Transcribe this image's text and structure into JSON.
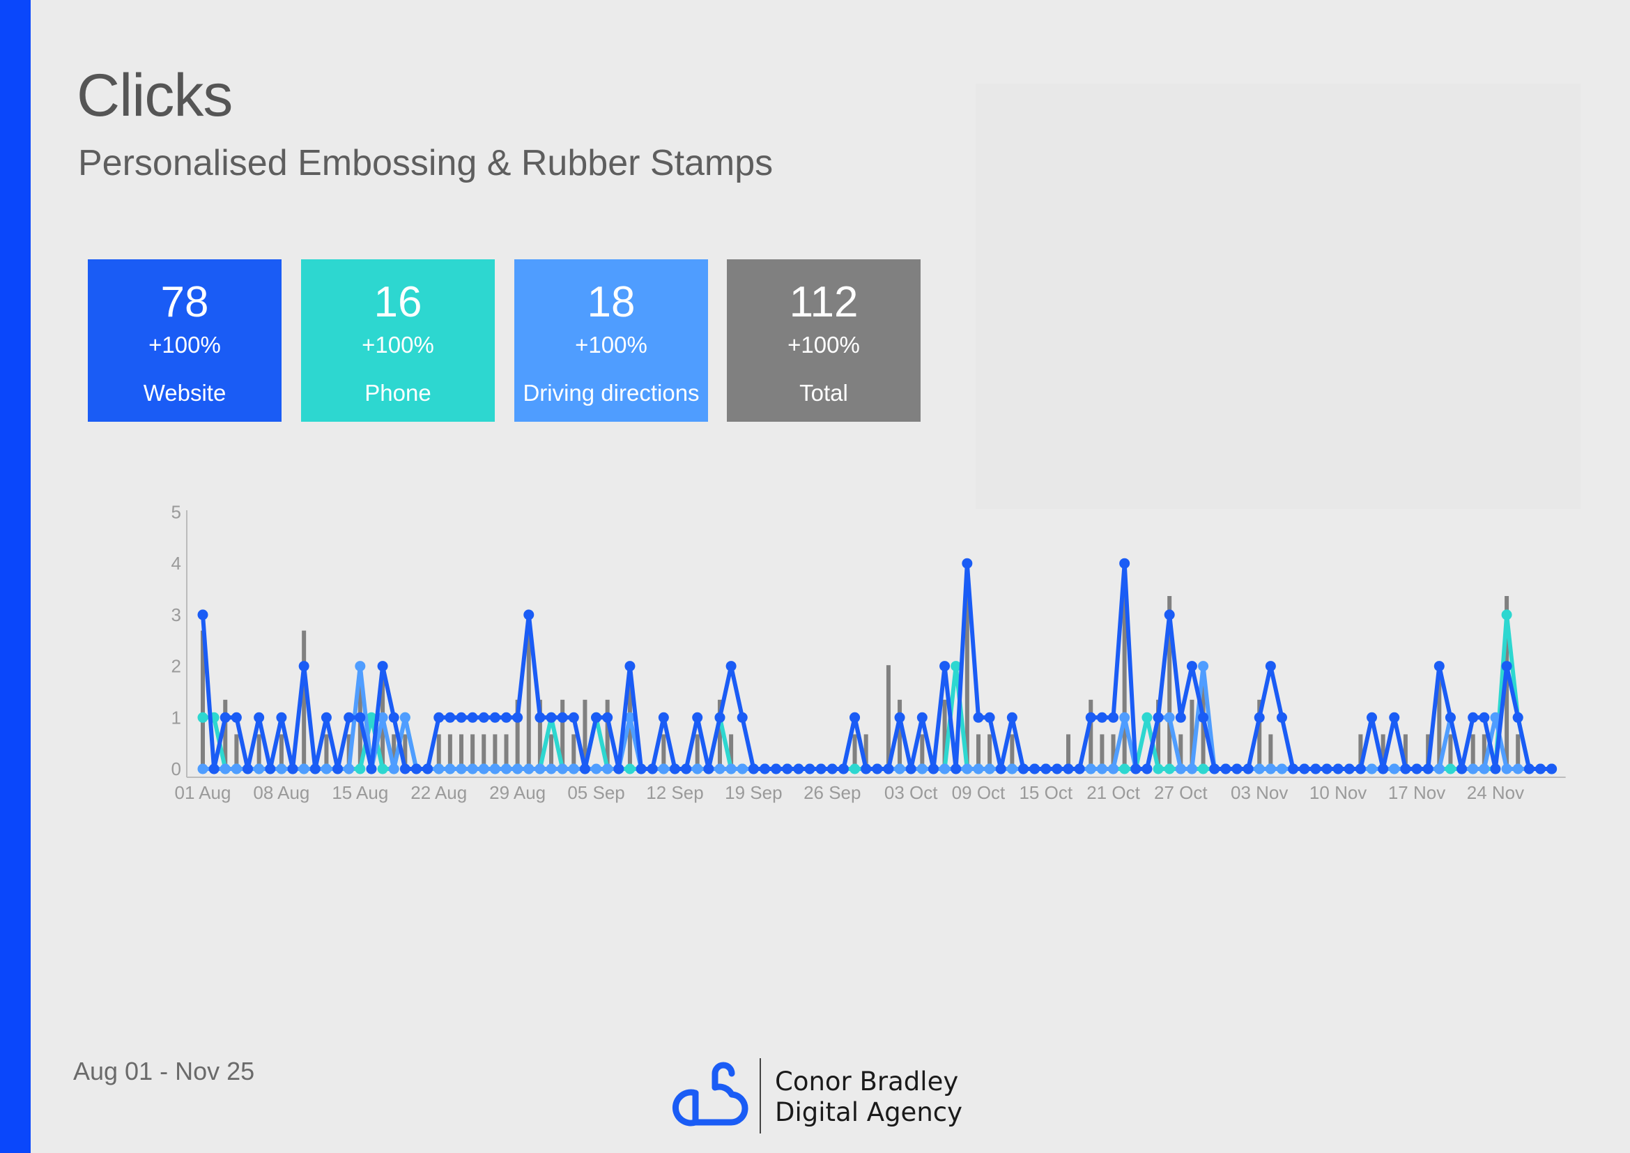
{
  "report": {
    "title": "Clicks",
    "subtitle": "Personalised Embossing & Rubber Stamps",
    "date_range": "Aug 01 - Nov 25"
  },
  "cards": [
    {
      "value": "78",
      "change": "+100%",
      "label": "Website",
      "color": "#1a5cf5"
    },
    {
      "value": "16",
      "change": "+100%",
      "label": "Phone",
      "color": "#2dd7d0"
    },
    {
      "value": "18",
      "change": "+100%",
      "label": "Driving directions",
      "color": "#4f9dff"
    },
    {
      "value": "112",
      "change": "+100%",
      "label": "Total",
      "color": "#808080"
    }
  ],
  "brand": {
    "line1": "Conor Bradley",
    "line2": "Digital Agency",
    "logo_icon": "cb-cloud-logo-icon",
    "accent": "#0a47fb"
  },
  "chart_data": {
    "type": "line",
    "ylim": [
      0,
      5
    ],
    "yticks": [
      "0",
      "1",
      "2",
      "3",
      "4",
      "5"
    ],
    "x_tick_labels": [
      "01 Aug",
      "08 Aug",
      "15 Aug",
      "22 Aug",
      "29 Aug",
      "05 Sep",
      "12 Sep",
      "19 Sep",
      "26 Sep",
      "03 Oct",
      "09 Oct",
      "15 Oct",
      "21 Oct",
      "27 Oct",
      "03 Nov",
      "10 Nov",
      "17 Nov",
      "24 Nov"
    ],
    "x_tick_index": [
      0,
      7,
      14,
      21,
      28,
      35,
      42,
      49,
      56,
      63,
      69,
      75,
      81,
      87,
      94,
      101,
      108,
      115
    ],
    "bar_series": {
      "color": "#808080",
      "values": [
        4,
        0,
        2,
        1,
        0,
        1,
        0,
        1,
        0,
        4,
        0,
        1,
        0,
        1,
        3,
        0,
        3,
        1,
        1,
        0,
        0,
        1,
        1,
        1,
        1,
        1,
        1,
        1,
        2,
        4,
        2,
        1,
        2,
        1,
        2,
        0,
        2,
        0,
        3,
        0,
        0,
        1,
        0,
        0,
        1,
        0,
        2,
        1,
        0,
        0,
        0,
        0,
        0,
        0,
        0,
        0,
        0,
        0,
        1,
        1,
        0,
        3,
        2,
        0,
        1,
        0,
        2,
        0,
        5,
        1,
        1,
        0,
        1,
        0,
        0,
        0,
        0,
        1,
        0,
        2,
        1,
        1,
        5,
        0,
        0,
        2,
        5,
        1,
        2,
        3,
        0,
        0,
        0,
        0,
        2,
        1,
        0,
        0,
        0,
        0,
        0,
        0,
        0,
        1,
        0,
        1,
        0,
        1,
        0,
        1,
        3,
        1,
        0,
        1,
        1,
        0,
        5,
        1,
        0,
        0,
        0
      ]
    },
    "series": [
      {
        "name": "Phone",
        "color": "#2dd7d0",
        "values": [
          1,
          1,
          0,
          0,
          0,
          0,
          0,
          0,
          0,
          0,
          0,
          0,
          0,
          0,
          0,
          1,
          0,
          0,
          1,
          0,
          0,
          0,
          0,
          0,
          0,
          0,
          0,
          0,
          0,
          0,
          0,
          1,
          0,
          0,
          0,
          1,
          0,
          0,
          0,
          0,
          0,
          0,
          0,
          0,
          0,
          0,
          1,
          0,
          0,
          0,
          0,
          0,
          0,
          0,
          0,
          0,
          0,
          0,
          0,
          0,
          0,
          0,
          0,
          0,
          0,
          0,
          0,
          2,
          0,
          0,
          0,
          0,
          0,
          0,
          0,
          0,
          0,
          0,
          0,
          0,
          0,
          0,
          0,
          0,
          1,
          0,
          0,
          0,
          0,
          0,
          0,
          0,
          0,
          0,
          0,
          0,
          0,
          0,
          0,
          0,
          0,
          0,
          0,
          0,
          0,
          0,
          0,
          0,
          0,
          0,
          0,
          0,
          0,
          0,
          0,
          0,
          3,
          1,
          0,
          0,
          0
        ]
      },
      {
        "name": "Driving directions",
        "color": "#4f9dff",
        "values": [
          0,
          0,
          0,
          0,
          0,
          0,
          0,
          0,
          0,
          0,
          0,
          0,
          0,
          0,
          2,
          0,
          1,
          0,
          1,
          0,
          0,
          0,
          0,
          0,
          0,
          0,
          0,
          0,
          0,
          0,
          0,
          0,
          0,
          0,
          0,
          0,
          0,
          0,
          1,
          0,
          0,
          0,
          0,
          0,
          0,
          0,
          0,
          0,
          0,
          0,
          0,
          0,
          0,
          0,
          0,
          0,
          0,
          0,
          1,
          0,
          0,
          0,
          0,
          0,
          0,
          0,
          0,
          0,
          0,
          0,
          0,
          0,
          0,
          0,
          0,
          0,
          0,
          0,
          0,
          0,
          0,
          0,
          1,
          0,
          0,
          1,
          1,
          0,
          0,
          2,
          0,
          0,
          0,
          0,
          0,
          0,
          0,
          0,
          0,
          0,
          0,
          0,
          0,
          0,
          0,
          0,
          0,
          0,
          0,
          0,
          0,
          1,
          0,
          0,
          0,
          1,
          0,
          0,
          0,
          0,
          0
        ]
      },
      {
        "name": "Website",
        "color": "#1a5cf5",
        "values": [
          3,
          0,
          1,
          1,
          0,
          1,
          0,
          1,
          0,
          2,
          0,
          1,
          0,
          1,
          1,
          0,
          2,
          1,
          0,
          0,
          0,
          1,
          1,
          1,
          1,
          1,
          1,
          1,
          1,
          3,
          1,
          1,
          1,
          1,
          0,
          1,
          1,
          0,
          2,
          0,
          0,
          1,
          0,
          0,
          1,
          0,
          1,
          2,
          1,
          0,
          0,
          0,
          0,
          0,
          0,
          0,
          0,
          0,
          1,
          0,
          0,
          0,
          1,
          0,
          1,
          0,
          2,
          0,
          4,
          1,
          1,
          0,
          1,
          0,
          0,
          0,
          0,
          0,
          0,
          1,
          1,
          1,
          4,
          0,
          0,
          1,
          3,
          1,
          2,
          1,
          0,
          0,
          0,
          0,
          1,
          2,
          1,
          0,
          0,
          0,
          0,
          0,
          0,
          0,
          1,
          0,
          1,
          0,
          0,
          0,
          2,
          1,
          0,
          1,
          1,
          0,
          2,
          1,
          0,
          0,
          0
        ]
      }
    ]
  }
}
